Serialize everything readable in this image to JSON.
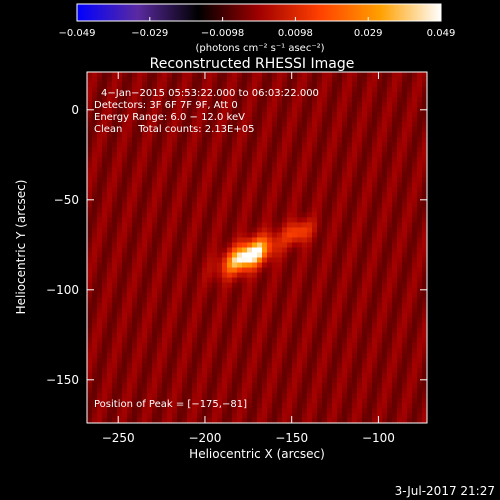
{
  "chart_data": {
    "type": "heatmap",
    "title": "Reconstructed RHESSI Image",
    "xlabel": "Heliocentric X (arcsec)",
    "ylabel": "Heliocentric Y (arcsec)",
    "xlim": [
      -268,
      -72
    ],
    "ylim": [
      -174,
      21
    ],
    "x_ticks": [
      -250,
      -200,
      -150,
      -100
    ],
    "y_ticks": [
      0,
      -50,
      -100,
      -150
    ],
    "x_tick_labels": [
      "−250",
      "−200",
      "−150",
      "−100"
    ],
    "y_tick_labels": [
      "0",
      "−50",
      "−100",
      "−150"
    ],
    "colorbar": {
      "min": -0.049,
      "max": 0.049,
      "tick_labels": [
        "−0.049",
        "−0.029",
        "−0.0098",
        "0.0098",
        "0.029",
        "0.049"
      ],
      "unit_label": "(photons cm⁻² s⁻¹ asec⁻²)",
      "colors": [
        "#0000ff",
        "#5a2aa0",
        "#000000",
        "#a00000",
        "#ff4000",
        "#ffa000",
        "#ffffff"
      ]
    },
    "annotations": {
      "time_range": "4−Jan−2015 05:53:22.000 to 06:03:22.000",
      "detectors": "Detectors: 3F 6F 7F 9F, Att 0",
      "energy": "Energy Range: 6.0 − 12.0 keV",
      "method": "Clean     Total counts: 2.13E+05",
      "peak": "Position of Peak = [−175,−81]"
    },
    "sources": [
      {
        "x": -175,
        "y": -81,
        "peak": 0.049,
        "sigma_major": 11,
        "sigma_minor": 5,
        "angle_deg": 28
      },
      {
        "x": -146,
        "y": -68,
        "peak": 0.022,
        "sigma_major": 6,
        "sigma_minor": 4,
        "angle_deg": 30
      }
    ],
    "background_stripes": {
      "amplitude": 0.008,
      "period_arcsec": 13,
      "tilt_deg": 15
    }
  },
  "footer": {
    "timestamp": "3-Jul-2017 21:27"
  }
}
